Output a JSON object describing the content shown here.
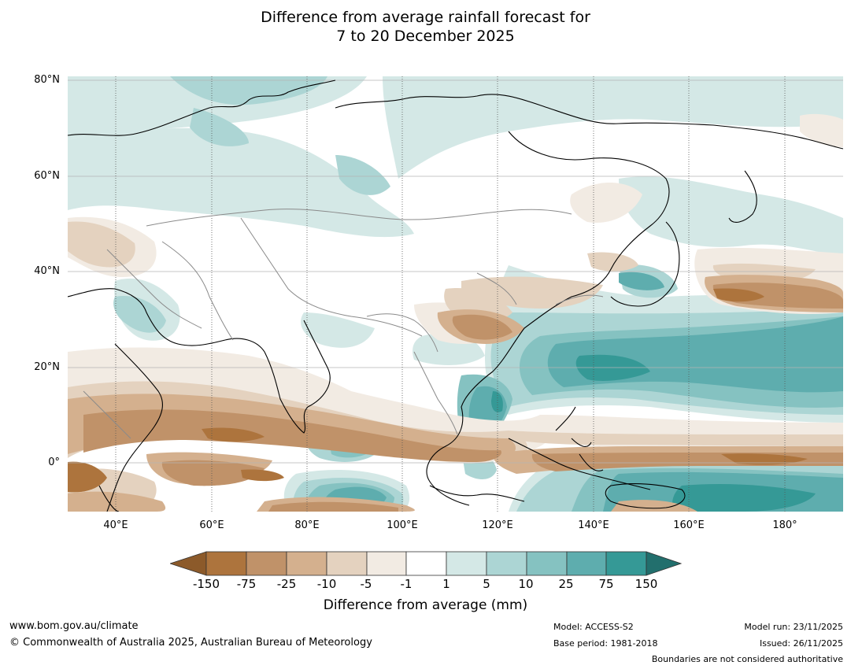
{
  "title": {
    "line1": "Difference from average rainfall forecast for",
    "line2": "7 to 20 December 2025"
  },
  "axes": {
    "lat_labels": [
      "80°N",
      "60°N",
      "40°N",
      "20°N",
      "0°"
    ],
    "lon_labels": [
      "40°E",
      "60°E",
      "80°E",
      "100°E",
      "120°E",
      "140°E",
      "160°E",
      "180°"
    ]
  },
  "colorbar": {
    "ticks": [
      "-150",
      "-75",
      "-25",
      "-10",
      "-5",
      "-1",
      "1",
      "5",
      "10",
      "25",
      "75",
      "150"
    ],
    "colors": [
      "#8c5a2a",
      "#ad743d",
      "#c09269",
      "#d4b08e",
      "#e4d2bf",
      "#f2ebe3",
      "#ffffff",
      "#d4e8e6",
      "#acd5d4",
      "#85c2c1",
      "#5eadae",
      "#359996",
      "#226f6d"
    ],
    "title": "Difference from average (mm)"
  },
  "footer": {
    "website": "www.bom.gov.au/climate",
    "copyright": "© Commonwealth of Australia 2025, Australian Bureau of Meteorology",
    "model": "Model: ACCESS-S2",
    "base_period": "Base period: 1981-2018",
    "model_run": "Model run: 23/11/2025",
    "issued": "Issued: 26/11/2025",
    "boundaries_note": "Boundaries are not considered authoritative"
  }
}
